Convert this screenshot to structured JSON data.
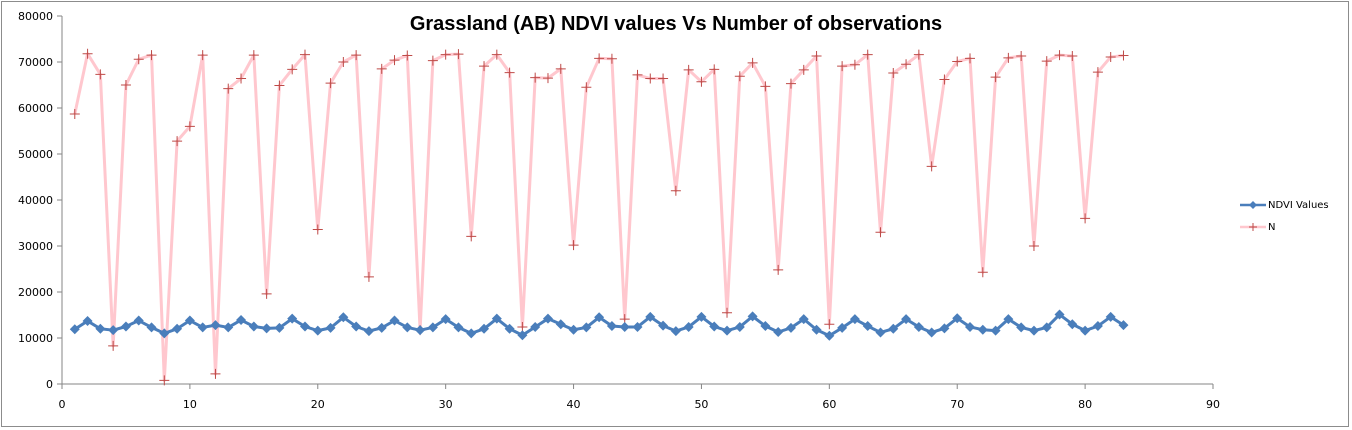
{
  "chart_data": {
    "type": "line",
    "title": "Grassland (AB) NDVI values Vs Number of observations",
    "xlabel": "",
    "ylabel": "",
    "xlim": [
      0,
      90
    ],
    "ylim": [
      0,
      80000
    ],
    "x_ticks": [
      "0",
      "10",
      "20",
      "30",
      "40",
      "50",
      "60",
      "70",
      "80",
      "90"
    ],
    "y_ticks": [
      "0",
      "10000",
      "20000",
      "30000",
      "40000",
      "50000",
      "60000",
      "70000",
      "80000"
    ],
    "grid": false,
    "legend_position": "right",
    "x": [
      1,
      2,
      3,
      4,
      5,
      6,
      7,
      8,
      9,
      10,
      11,
      12,
      13,
      14,
      15,
      16,
      17,
      18,
      19,
      20,
      21,
      22,
      23,
      24,
      25,
      26,
      27,
      28,
      29,
      30,
      31,
      32,
      33,
      34,
      35,
      36,
      37,
      38,
      39,
      40,
      41,
      42,
      43,
      44,
      45,
      46,
      47,
      48,
      49,
      50,
      51,
      52,
      53,
      54,
      55,
      56,
      57,
      58,
      59,
      60,
      61,
      62,
      63,
      64,
      65,
      66,
      67,
      68,
      69,
      70,
      71,
      72,
      73,
      74,
      75,
      76,
      77,
      78,
      79,
      80,
      81,
      82,
      83
    ],
    "series": [
      {
        "name": "NDVI Values",
        "color": "#4a7ebb",
        "marker": "diamond",
        "values": [
          11900,
          13700,
          12000,
          11700,
          12500,
          13800,
          12300,
          11000,
          12000,
          13800,
          12300,
          12800,
          12300,
          13900,
          12500,
          12100,
          12200,
          14200,
          12500,
          11600,
          12200,
          14500,
          12500,
          11500,
          12200,
          13800,
          12300,
          11700,
          12300,
          14100,
          12300,
          11000,
          12000,
          14200,
          12000,
          10600,
          12400,
          14200,
          13000,
          11800,
          12300,
          14500,
          12600,
          12400,
          12400,
          14600,
          12700,
          11500,
          12400,
          14600,
          12500,
          11600,
          12400,
          14700,
          12600,
          11300,
          12200,
          14100,
          11800,
          10500,
          12200,
          14100,
          12600,
          11200,
          12000,
          14100,
          12400,
          11200,
          12100,
          14300,
          12400,
          11800,
          11600,
          14100,
          12300,
          11600,
          12300,
          15100,
          13000,
          11600,
          12600,
          14600,
          12800
        ]
      },
      {
        "name": "N",
        "color": "#ffc7ce",
        "marker_color": "#be4b48",
        "marker": "plus",
        "values": [
          58700,
          71800,
          67300,
          8300,
          65000,
          70600,
          71500,
          800,
          52800,
          56000,
          71500,
          2200,
          64200,
          66400,
          71500,
          19600,
          64900,
          68400,
          71600,
          33600,
          65400,
          70000,
          71500,
          23300,
          68500,
          70400,
          71400,
          11700,
          70300,
          71600,
          71700,
          32100,
          69100,
          71600,
          67700,
          12400,
          66600,
          66500,
          68500,
          30200,
          64500,
          70800,
          70700,
          14100,
          67200,
          66400,
          66400,
          42000,
          68300,
          65700,
          68400,
          15500,
          66900,
          69800,
          64700,
          24800,
          65300,
          68300,
          71300,
          13000,
          69100,
          69400,
          71600,
          33000,
          67600,
          69500,
          71600,
          47300,
          66200,
          70100,
          70800,
          24300,
          66700,
          70900,
          71300,
          30000,
          70200,
          71500,
          71300,
          36000,
          67800,
          71100,
          71400
        ]
      }
    ]
  }
}
